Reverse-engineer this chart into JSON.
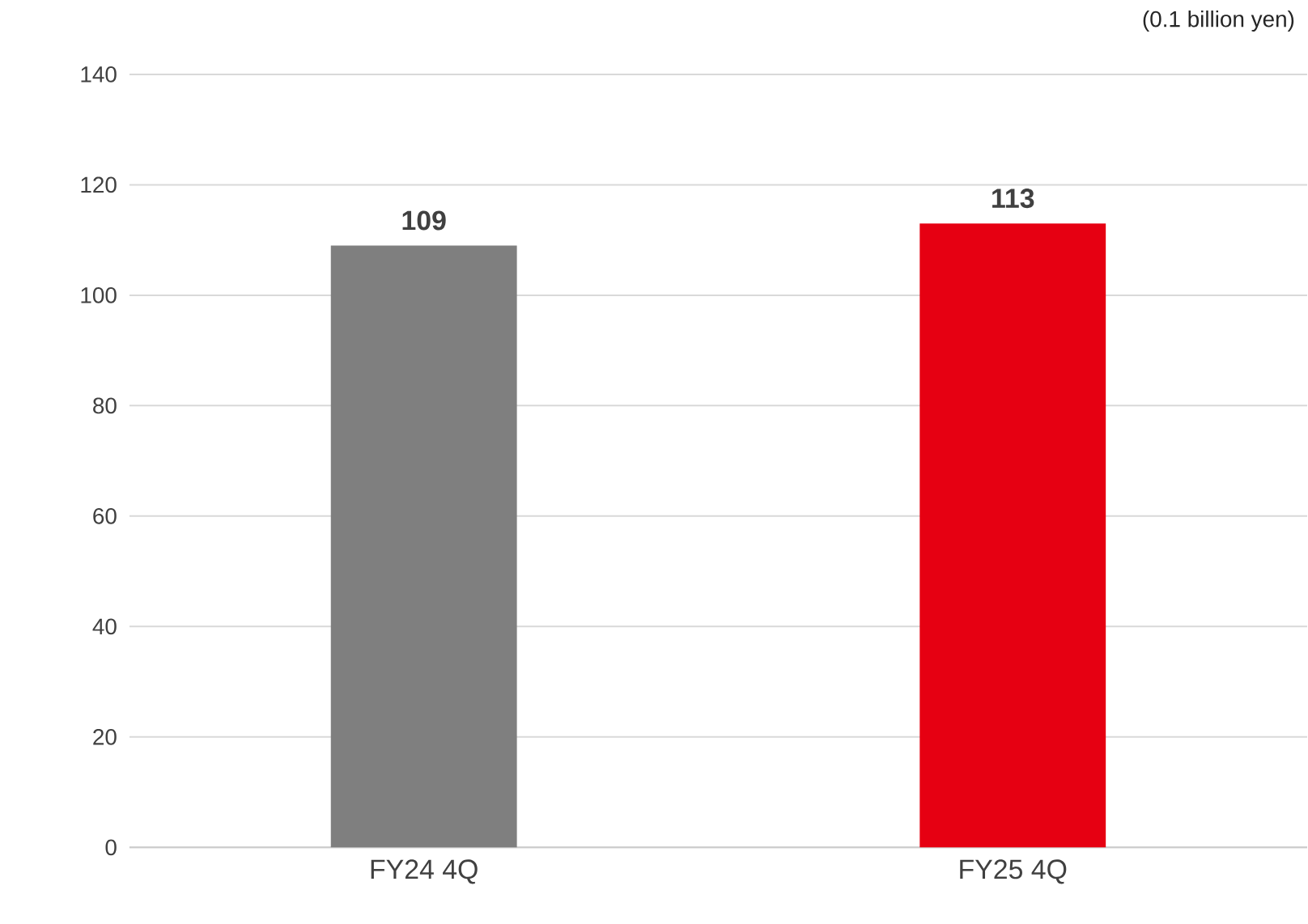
{
  "chart_data": {
    "type": "bar",
    "categories": [
      "FY24 4Q",
      "FY25 4Q"
    ],
    "values": [
      109,
      113
    ],
    "colors": [
      "#7f7f7f",
      "#e60012"
    ],
    "ylim": [
      0,
      140
    ],
    "yticks": [
      0,
      20,
      40,
      60,
      80,
      100,
      120,
      140
    ],
    "grid": "y",
    "data_labels": true,
    "annotations": [
      "(0.1 billion yen)"
    ]
  }
}
